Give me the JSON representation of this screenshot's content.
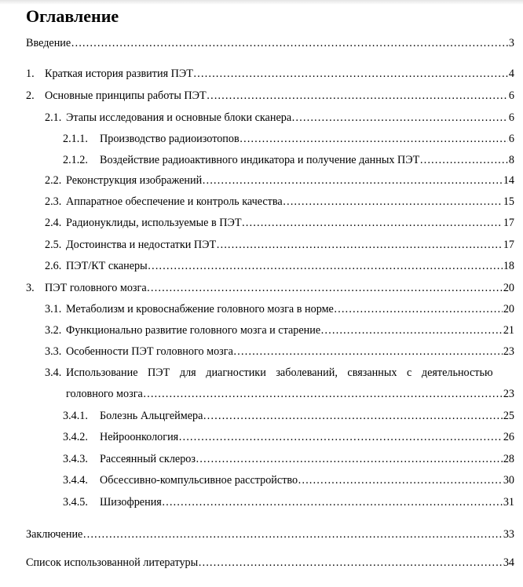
{
  "title": "Оглавление",
  "entries": [
    {
      "num": "",
      "title": "Введение",
      "page": "3",
      "level": 0
    },
    {
      "num": "1.",
      "title": "Краткая история развития ПЭТ",
      "page": "4",
      "level": 0
    },
    {
      "num": "2.",
      "title": "Основные принципы работы ПЭТ",
      "page": "6",
      "level": 0
    },
    {
      "num": "2.1.",
      "title": "Этапы исследования и основные блоки сканера",
      "page": "6",
      "level": 1
    },
    {
      "num": "2.1.1.",
      "title": "Производство радиоизотопов",
      "page": "6",
      "level": 2
    },
    {
      "num": "2.1.2.",
      "title": "Воздействие радиоактивного индикатора и получение данных ПЭТ",
      "page": "8",
      "level": 2
    },
    {
      "num": "2.2.",
      "title": "Реконструкция изображений",
      "page": "14",
      "level": 1
    },
    {
      "num": "2.3.",
      "title": "Аппаратное обеспечение и контроль качества",
      "page": "15",
      "level": 1
    },
    {
      "num": "2.4.",
      "title": "Радионуклиды, используемые в ПЭТ",
      "page": "17",
      "level": 1
    },
    {
      "num": "2.5.",
      "title": "Достоинства и недостатки ПЭТ",
      "page": "17",
      "level": 1
    },
    {
      "num": "2.6.",
      "title": "ПЭТ/КТ сканеры",
      "page": "18",
      "level": 1
    },
    {
      "num": "3.",
      "title": "ПЭТ головного мозга",
      "page": "20",
      "level": 0
    },
    {
      "num": "3.1.",
      "title": "Метаболизм и кровоснабжение головного мозга в норме",
      "page": "20",
      "level": 1
    },
    {
      "num": "3.2.",
      "title": "Функционально развитие головного мозга и старение",
      "page": "21",
      "level": 1
    },
    {
      "num": "3.3.",
      "title": "Особенности ПЭТ головного мозга",
      "page": "23",
      "level": 1
    },
    {
      "num": "3.4.",
      "title": "Использование ПЭТ для диагностики заболеваний, связанных с деятельностью",
      "title_cont": "головного мозга",
      "page": "23",
      "level": 1
    },
    {
      "num": "3.4.1.",
      "title": "Болезнь Альцгеймера",
      "page": "25",
      "level": 2
    },
    {
      "num": "3.4.2.",
      "title": "Нейроонкология",
      "page": "26",
      "level": 2
    },
    {
      "num": "3.4.3.",
      "title": "Рассеянный склероз",
      "page": "28",
      "level": 2
    },
    {
      "num": "3.4.4.",
      "title": "Обсессивно-компульсивное расстройство",
      "page": "30",
      "level": 2
    },
    {
      "num": "3.4.5.",
      "title": "Шизофрения",
      "page": "31",
      "level": 2
    },
    {
      "num": "",
      "title": "Заключение",
      "page": "33",
      "level": 0
    },
    {
      "num": "",
      "title": "Список использованной литературы",
      "page": "34",
      "level": 0
    }
  ]
}
